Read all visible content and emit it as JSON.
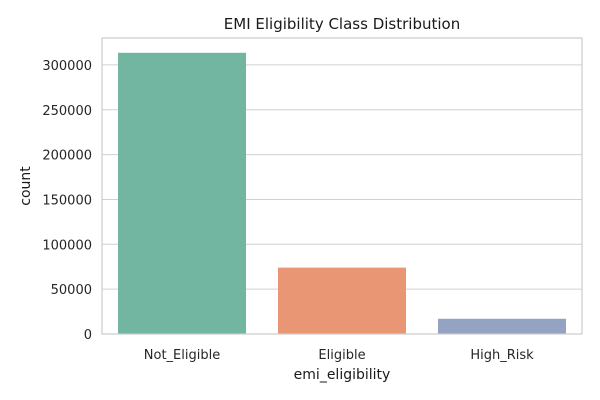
{
  "chart_data": {
    "type": "bar",
    "title": "EMI Eligibility Class Distribution",
    "xlabel": "emi_eligibility",
    "ylabel": "count",
    "categories": [
      "Not_Eligible",
      "Eligible",
      "High_Risk"
    ],
    "values": [
      313500,
      74000,
      17000
    ],
    "colors": [
      "#72b6a1",
      "#e99675",
      "#95a3c3"
    ],
    "ylim": [
      0,
      330000
    ],
    "yticks": [
      0,
      50000,
      100000,
      150000,
      200000,
      250000,
      300000
    ],
    "grid": true,
    "legend": "none"
  }
}
